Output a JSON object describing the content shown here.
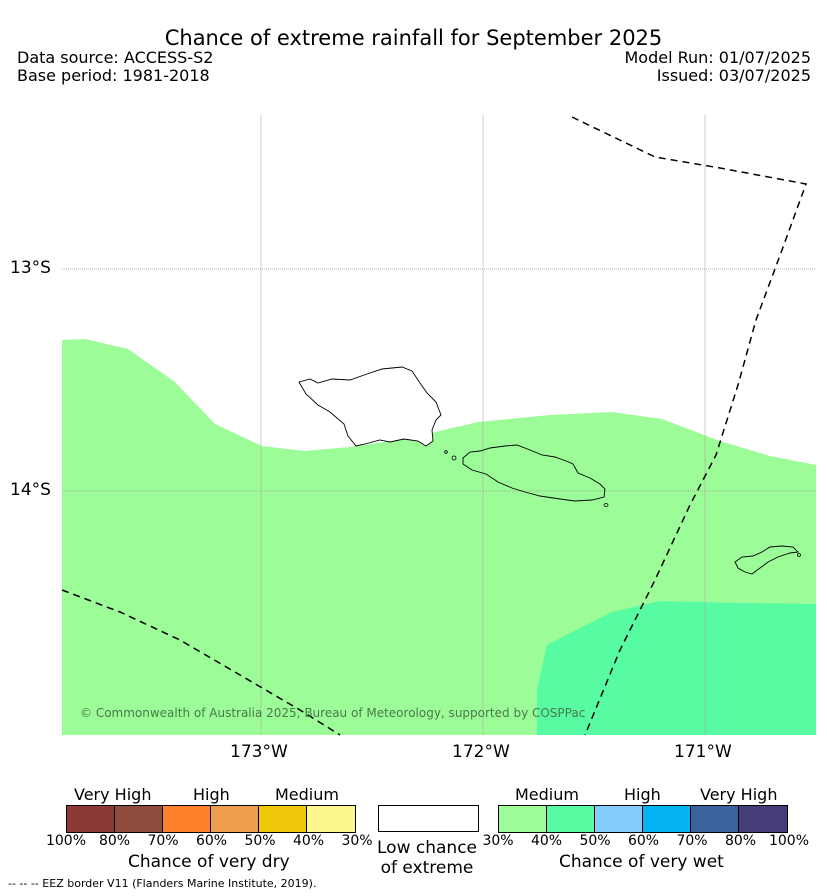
{
  "title": "Chance of extreme rainfall for September 2025",
  "data_source": "Data source: ACCESS-S2",
  "base_period": "Base period: 1981-2018",
  "model_run": "Model Run: 01/07/2025",
  "issued": "Issued: 03/07/2025",
  "lat_labels": [
    "13°S",
    "14°S"
  ],
  "lon_labels": [
    "173°W",
    "172°W",
    "171°W"
  ],
  "copyright": "© Commonwealth of Australia 2025, Bureau of Meteorology, supported by COSPPac",
  "regions": [
    {
      "category": "Medium (wet)",
      "color": "#9cfc97"
    },
    {
      "category": "40%-50% wet",
      "color": "#56fba2"
    },
    {
      "category": "Low chance of extreme",
      "color": "#ffffff"
    }
  ],
  "legend": {
    "dry": {
      "categories": [
        "Very High",
        "High",
        "Medium"
      ],
      "colors": [
        "#8b3a35",
        "#8d4c3c",
        "#fd812a",
        "#ef9d4c",
        "#efc70b",
        "#fef68f"
      ],
      "ticks": [
        "100%",
        "80%",
        "70%",
        "60%",
        "50%",
        "40%",
        "30%"
      ],
      "title": "Chance of very dry"
    },
    "low": {
      "color": "#ffffff",
      "title_line1": "Low chance",
      "title_line2": "of extreme"
    },
    "wet": {
      "categories": [
        "Medium",
        "High",
        "Very High"
      ],
      "colors": [
        "#9cfc97",
        "#56fba2",
        "#84cdfb",
        "#03b4f0",
        "#3a639c",
        "#453c7a"
      ],
      "ticks": [
        "30%",
        "40%",
        "50%",
        "60%",
        "70%",
        "80%",
        "100%"
      ],
      "title": "Chance of very wet"
    }
  },
  "footnote": "--  --  -- EEZ border V11 (Flanders Marine Institute, 2019)."
}
